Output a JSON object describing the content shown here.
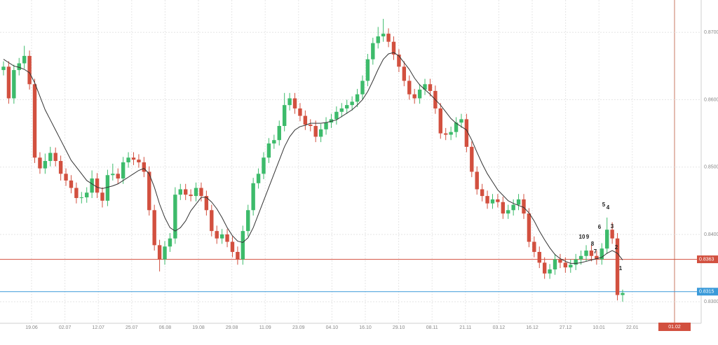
{
  "chart_data": {
    "type": "candlestick",
    "up_color": "#3dbb6b",
    "down_color": "#d2503f",
    "ma_color": "#333333",
    "ylim": [
      0.8268,
      0.8748
    ],
    "yticks": [
      {
        "value": 0.87,
        "label": "0.8700"
      },
      {
        "value": 0.86,
        "label": "0.8600"
      },
      {
        "value": 0.85,
        "label": "0.8500"
      },
      {
        "value": 0.84,
        "label": "0.8400"
      },
      {
        "value": 0.83,
        "label": "0.8300"
      }
    ],
    "grid": true,
    "categories": [
      "19.06",
      "02.07",
      "12.07",
      "25.07",
      "06.08",
      "19.08",
      "29.08",
      "11.09",
      "23.09",
      "04.10",
      "16.10",
      "29.10",
      "08.11",
      "21.11",
      "03.12",
      "16.12",
      "27.12",
      "10.01",
      "22.01"
    ],
    "open": [
      0.8644,
      0.8649,
      0.8602,
      0.8644,
      0.8654,
      0.8665,
      0.8623,
      0.8514,
      0.8498,
      0.8509,
      0.8521,
      0.8509,
      0.849,
      0.848,
      0.8469,
      0.8454,
      0.8455,
      0.8462,
      0.8483,
      0.8462,
      0.845,
      0.8488,
      0.849,
      0.8483,
      0.8507,
      0.8514,
      0.8511,
      0.8507,
      0.8493,
      0.8436,
      0.8384,
      0.8363,
      0.8382,
      0.8394,
      0.8459,
      0.8467,
      0.8459,
      0.8457,
      0.8469,
      0.8457,
      0.8436,
      0.8405,
      0.8394,
      0.84,
      0.8389,
      0.8374,
      0.8363,
      0.8405,
      0.8436,
      0.8476,
      0.849,
      0.8514,
      0.8535,
      0.854,
      0.8561,
      0.8592,
      0.8602,
      0.8587,
      0.8576,
      0.8563,
      0.8561,
      0.8545,
      0.8556,
      0.8566,
      0.8571,
      0.8582,
      0.8587,
      0.8592,
      0.8597,
      0.8608,
      0.8628,
      0.866,
      0.8684,
      0.8694,
      0.8698,
      0.8686,
      0.8667,
      0.8649,
      0.8628,
      0.8608,
      0.8602,
      0.8615,
      0.8623,
      0.8613,
      0.8587,
      0.855,
      0.8548,
      0.8552,
      0.8566,
      0.8571,
      0.853,
      0.8493,
      0.8467,
      0.8457,
      0.8446,
      0.8452,
      0.8448,
      0.8431,
      0.8436,
      0.8444,
      0.8452,
      0.8431,
      0.8389,
      0.8374,
      0.8358,
      0.8342,
      0.8348,
      0.8363,
      0.8358,
      0.8351,
      0.8355,
      0.8363,
      0.8368,
      0.8376,
      0.8368,
      0.8363,
      0.8379,
      0.8407,
      0.8394,
      0.831
    ],
    "close": [
      0.8649,
      0.8602,
      0.8644,
      0.8654,
      0.8665,
      0.8623,
      0.8514,
      0.8498,
      0.8509,
      0.8521,
      0.8509,
      0.849,
      0.848,
      0.8469,
      0.8454,
      0.8455,
      0.8462,
      0.8483,
      0.8462,
      0.845,
      0.8488,
      0.849,
      0.8483,
      0.8507,
      0.8514,
      0.8511,
      0.8507,
      0.8493,
      0.8436,
      0.8384,
      0.8363,
      0.8382,
      0.8394,
      0.8459,
      0.8467,
      0.8459,
      0.8457,
      0.8469,
      0.8457,
      0.8436,
      0.8405,
      0.8394,
      0.84,
      0.8389,
      0.8374,
      0.8363,
      0.8405,
      0.8436,
      0.8476,
      0.849,
      0.8514,
      0.8535,
      0.854,
      0.8561,
      0.8592,
      0.8602,
      0.8587,
      0.8576,
      0.8563,
      0.8561,
      0.8545,
      0.8556,
      0.8566,
      0.8571,
      0.8582,
      0.8587,
      0.8592,
      0.8597,
      0.8608,
      0.8628,
      0.866,
      0.8684,
      0.8694,
      0.8698,
      0.8686,
      0.8667,
      0.8649,
      0.8628,
      0.8608,
      0.8602,
      0.8615,
      0.8623,
      0.8613,
      0.8587,
      0.855,
      0.8548,
      0.8552,
      0.8566,
      0.8571,
      0.853,
      0.8493,
      0.8467,
      0.8457,
      0.8446,
      0.8452,
      0.8448,
      0.8431,
      0.8436,
      0.8444,
      0.8452,
      0.8431,
      0.8389,
      0.8374,
      0.8358,
      0.8342,
      0.8348,
      0.8363,
      0.8358,
      0.8351,
      0.8355,
      0.8363,
      0.8368,
      0.8376,
      0.8368,
      0.8363,
      0.8379,
      0.8407,
      0.8394,
      0.831,
      0.8313
    ],
    "high": [
      0.8657,
      0.8657,
      0.8652,
      0.8662,
      0.868,
      0.8673,
      0.8631,
      0.8522,
      0.852,
      0.853,
      0.8529,
      0.8517,
      0.8498,
      0.8488,
      0.8477,
      0.8463,
      0.847,
      0.8495,
      0.8491,
      0.847,
      0.8496,
      0.8505,
      0.8498,
      0.8515,
      0.8522,
      0.8522,
      0.8519,
      0.8515,
      0.8501,
      0.8444,
      0.8392,
      0.839,
      0.8402,
      0.847,
      0.8475,
      0.8475,
      0.8467,
      0.8477,
      0.8477,
      0.8465,
      0.8444,
      0.8413,
      0.8408,
      0.8408,
      0.8397,
      0.8382,
      0.8413,
      0.8444,
      0.8484,
      0.8498,
      0.8522,
      0.8543,
      0.8548,
      0.8569,
      0.861,
      0.861,
      0.861,
      0.8595,
      0.8584,
      0.8571,
      0.8569,
      0.8564,
      0.8574,
      0.8579,
      0.859,
      0.8595,
      0.86,
      0.8605,
      0.8616,
      0.8636,
      0.8668,
      0.8692,
      0.8708,
      0.872,
      0.8706,
      0.8694,
      0.8675,
      0.8657,
      0.8636,
      0.8616,
      0.8623,
      0.8631,
      0.8631,
      0.8621,
      0.8595,
      0.8558,
      0.856,
      0.8574,
      0.8579,
      0.8579,
      0.8538,
      0.8501,
      0.8475,
      0.8465,
      0.846,
      0.846,
      0.8456,
      0.8444,
      0.8452,
      0.846,
      0.846,
      0.8439,
      0.8397,
      0.8382,
      0.8366,
      0.8356,
      0.8371,
      0.8371,
      0.8366,
      0.8363,
      0.8371,
      0.8376,
      0.8384,
      0.8384,
      0.8376,
      0.8387,
      0.8425,
      0.8418,
      0.8402,
      0.8318
    ],
    "low": [
      0.8636,
      0.8594,
      0.8594,
      0.8636,
      0.8646,
      0.8615,
      0.8506,
      0.849,
      0.849,
      0.8501,
      0.8501,
      0.848,
      0.8472,
      0.8461,
      0.8446,
      0.8446,
      0.8447,
      0.8454,
      0.8454,
      0.844,
      0.8442,
      0.848,
      0.8475,
      0.8475,
      0.8499,
      0.8503,
      0.8499,
      0.8485,
      0.8428,
      0.8376,
      0.8345,
      0.8355,
      0.8374,
      0.8386,
      0.8451,
      0.8451,
      0.8449,
      0.8449,
      0.8449,
      0.8428,
      0.8397,
      0.8386,
      0.8386,
      0.8381,
      0.8366,
      0.8355,
      0.8355,
      0.8397,
      0.8428,
      0.8468,
      0.8482,
      0.8506,
      0.8527,
      0.8532,
      0.8553,
      0.8584,
      0.8579,
      0.8568,
      0.8555,
      0.8553,
      0.8537,
      0.8537,
      0.8548,
      0.8558,
      0.8563,
      0.8574,
      0.8579,
      0.8584,
      0.8589,
      0.86,
      0.862,
      0.8652,
      0.8676,
      0.8686,
      0.8678,
      0.8659,
      0.8641,
      0.862,
      0.86,
      0.8594,
      0.8594,
      0.8607,
      0.8605,
      0.8579,
      0.8542,
      0.854,
      0.854,
      0.8544,
      0.8558,
      0.8522,
      0.8485,
      0.8459,
      0.8449,
      0.8438,
      0.8438,
      0.844,
      0.8423,
      0.8423,
      0.8428,
      0.8436,
      0.8423,
      0.8381,
      0.8366,
      0.835,
      0.8334,
      0.8334,
      0.834,
      0.835,
      0.8343,
      0.8343,
      0.8347,
      0.8355,
      0.836,
      0.836,
      0.8355,
      0.8355,
      0.8371,
      0.8386,
      0.8302,
      0.83
    ],
    "ma": [
      0.866,
      0.8655,
      0.865,
      0.8648,
      0.8645,
      0.864,
      0.8625,
      0.8605,
      0.8585,
      0.857,
      0.8555,
      0.854,
      0.8525,
      0.851,
      0.85,
      0.849,
      0.848,
      0.8475,
      0.847,
      0.8468,
      0.847,
      0.8472,
      0.8475,
      0.848,
      0.8485,
      0.849,
      0.8495,
      0.8498,
      0.849,
      0.847,
      0.8445,
      0.8425,
      0.841,
      0.8405,
      0.841,
      0.842,
      0.8435,
      0.8445,
      0.8455,
      0.8455,
      0.8448,
      0.8438,
      0.8425,
      0.841,
      0.8398,
      0.839,
      0.8388,
      0.8395,
      0.841,
      0.843,
      0.845,
      0.847,
      0.849,
      0.851,
      0.853,
      0.8545,
      0.8555,
      0.856,
      0.8562,
      0.8565,
      0.8565,
      0.8565,
      0.8566,
      0.8568,
      0.857,
      0.8575,
      0.858,
      0.8585,
      0.8592,
      0.86,
      0.8612,
      0.8628,
      0.8645,
      0.866,
      0.8668,
      0.867,
      0.8665,
      0.8655,
      0.8645,
      0.8632,
      0.8622,
      0.8615,
      0.8608,
      0.86,
      0.8592,
      0.8582,
      0.8572,
      0.8565,
      0.856,
      0.8555,
      0.854,
      0.8522,
      0.8505,
      0.849,
      0.8478,
      0.8466,
      0.8458,
      0.845,
      0.8446,
      0.8443,
      0.844,
      0.8432,
      0.842,
      0.8405,
      0.8392,
      0.838,
      0.837,
      0.8364,
      0.836,
      0.8357,
      0.8357,
      0.8358,
      0.836,
      0.8362,
      0.8364,
      0.8366,
      0.8372,
      0.8376,
      0.8372,
      0.8362
    ],
    "price_lines": [
      0.8363,
      0.8315
    ],
    "price_line_colors": [
      "#d2503f",
      "#3a9ad9"
    ],
    "annotations": [
      "10",
      "9",
      "8",
      "7",
      "6",
      "5",
      "4",
      "3",
      "2",
      "1"
    ],
    "crosshair_label": "01.02"
  }
}
